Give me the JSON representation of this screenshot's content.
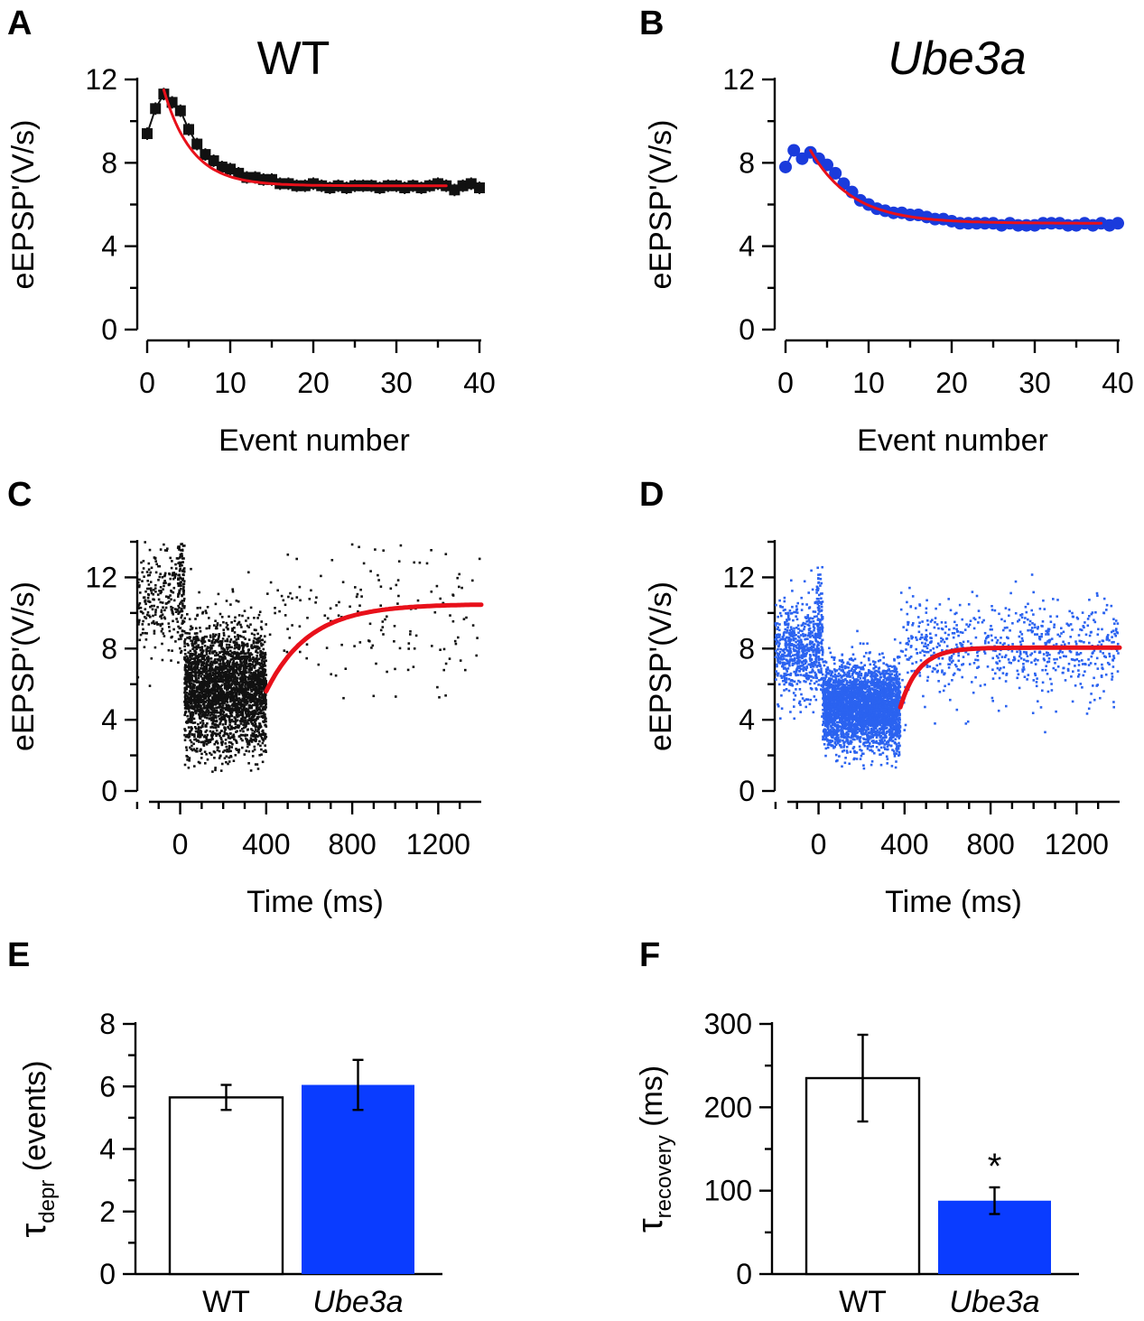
{
  "panels": {
    "A": {
      "letter": "A",
      "title": "WT"
    },
    "B": {
      "letter": "B",
      "title": "Ube3a"
    },
    "C": {
      "letter": "C"
    },
    "D": {
      "letter": "D"
    },
    "E": {
      "letter": "E"
    },
    "F": {
      "letter": "F"
    }
  },
  "colors": {
    "wt": "#111111",
    "ube3a": "#1a3bdc",
    "ube3a_scatter": "#2b63f0",
    "fit": "#e8101a",
    "bar_ube3a": "#0a3cff"
  },
  "chart_data": [
    {
      "id": "A",
      "type": "line",
      "title": "WT",
      "xlabel": "Event number",
      "ylabel": "eEPSP'(V/s)",
      "xlim": [
        -1,
        40
      ],
      "ylim": [
        0,
        12
      ],
      "xticks": [
        0,
        10,
        20,
        30,
        40
      ],
      "yticks": [
        0,
        4,
        8,
        12
      ],
      "series": [
        {
          "name": "WT",
          "x": [
            0,
            1,
            2,
            3,
            4,
            5,
            6,
            7,
            8,
            9,
            10,
            11,
            12,
            13,
            14,
            15,
            16,
            17,
            18,
            19,
            20,
            21,
            22,
            23,
            24,
            25,
            26,
            27,
            28,
            29,
            30,
            31,
            32,
            33,
            34,
            35,
            36,
            37,
            38,
            39,
            40
          ],
          "values": [
            9.4,
            10.6,
            11.3,
            10.9,
            10.5,
            9.6,
            8.9,
            8.4,
            8.1,
            7.8,
            7.7,
            7.5,
            7.3,
            7.3,
            7.2,
            7.2,
            7.0,
            7.0,
            6.9,
            6.9,
            7.0,
            6.9,
            6.8,
            6.9,
            6.8,
            6.9,
            6.9,
            6.9,
            6.8,
            6.9,
            6.9,
            6.8,
            6.9,
            6.8,
            6.9,
            7.0,
            6.9,
            6.7,
            6.9,
            7.0,
            6.8
          ],
          "errors": [
            0.3,
            0.3,
            0.3,
            0.3,
            0.3,
            0.3,
            0.3,
            0.3,
            0.3,
            0.3,
            0.3,
            0.3,
            0.3,
            0.3,
            0.3,
            0.3,
            0.3,
            0.3,
            0.3,
            0.3,
            0.3,
            0.3,
            0.3,
            0.3,
            0.3,
            0.3,
            0.3,
            0.3,
            0.3,
            0.3,
            0.3,
            0.3,
            0.3,
            0.3,
            0.3,
            0.3,
            0.3,
            0.3,
            0.3,
            0.3,
            0.3
          ]
        }
      ],
      "fit": {
        "x_start": 2,
        "x_end": 36,
        "y0": 11.5,
        "y_inf": 6.9,
        "tau": 3.4
      }
    },
    {
      "id": "B",
      "type": "line",
      "title": "Ube3a",
      "xlabel": "Event number",
      "ylabel": "eEPSP'(V/s)",
      "xlim": [
        -1,
        40
      ],
      "ylim": [
        0,
        12
      ],
      "xticks": [
        0,
        10,
        20,
        30,
        40
      ],
      "yticks": [
        0,
        4,
        8,
        12
      ],
      "series": [
        {
          "name": "Ube3a",
          "x": [
            0,
            1,
            2,
            3,
            4,
            5,
            6,
            7,
            8,
            9,
            10,
            11,
            12,
            13,
            14,
            15,
            16,
            17,
            18,
            19,
            20,
            21,
            22,
            23,
            24,
            25,
            26,
            27,
            28,
            29,
            30,
            31,
            32,
            33,
            34,
            35,
            36,
            37,
            38,
            39,
            40
          ],
          "values": [
            7.8,
            8.6,
            8.2,
            8.5,
            8.2,
            7.9,
            7.5,
            7.0,
            6.6,
            6.2,
            6.0,
            5.8,
            5.7,
            5.6,
            5.6,
            5.5,
            5.5,
            5.4,
            5.3,
            5.3,
            5.2,
            5.1,
            5.1,
            5.1,
            5.1,
            5.1,
            5.0,
            5.1,
            5.0,
            5.0,
            5.0,
            5.1,
            5.1,
            5.1,
            5.0,
            5.0,
            5.1,
            5.0,
            5.1,
            5.0,
            5.1
          ],
          "errors": [
            0.25,
            0.25,
            0.25,
            0.25,
            0.25,
            0.25,
            0.25,
            0.25,
            0.25,
            0.25,
            0.25,
            0.25,
            0.25,
            0.25,
            0.25,
            0.25,
            0.25,
            0.25,
            0.25,
            0.25,
            0.25,
            0.25,
            0.25,
            0.25,
            0.25,
            0.25,
            0.25,
            0.25,
            0.25,
            0.25,
            0.25,
            0.25,
            0.25,
            0.25,
            0.25,
            0.25,
            0.25,
            0.25,
            0.25,
            0.25,
            0.25
          ]
        }
      ],
      "fit": {
        "x_start": 3,
        "x_end": 38,
        "y0": 8.6,
        "y_inf": 5.1,
        "tau": 5.0
      }
    },
    {
      "id": "C",
      "type": "scatter",
      "xlabel": "Time (ms)",
      "ylabel": "eEPSP'(V/s)",
      "xlim": [
        -250,
        1400
      ],
      "ylim": [
        0,
        14
      ],
      "xticks": [
        0,
        400,
        800,
        1200
      ],
      "xminor": [
        -200,
        -100,
        100,
        200,
        300,
        500,
        600,
        700,
        900,
        1000,
        1100,
        1300
      ],
      "yticks": [
        0,
        4,
        8,
        12
      ],
      "yminor": [
        2,
        6,
        10,
        14
      ],
      "series": [
        {
          "name": "WT",
          "segments": [
            {
              "x": [
                -200,
                -10
              ],
              "mean": 10.8,
              "sd": 1.6,
              "n": 220
            },
            {
              "x": [
                -10,
                20
              ],
              "mean": 11.5,
              "sd": 1.8,
              "n": 120
            },
            {
              "x": [
                20,
                400
              ],
              "mean": 5.8,
              "sd": 1.7,
              "n": 3000
            },
            {
              "x": [
                400,
                1400
              ],
              "mean": 9.8,
              "sd": 2.2,
              "n": 150
            }
          ]
        }
      ],
      "fit": {
        "x_start": 400,
        "x_end": 1400,
        "y0": 5.6,
        "y_inf": 10.5,
        "tau": 200
      }
    },
    {
      "id": "D",
      "type": "scatter",
      "xlabel": "Time (ms)",
      "ylabel": "eEPSP'(V/s)",
      "xlim": [
        -250,
        1400
      ],
      "ylim": [
        0,
        14
      ],
      "xticks": [
        0,
        400,
        800,
        1200
      ],
      "xminor": [
        -200,
        -100,
        100,
        200,
        300,
        500,
        600,
        700,
        900,
        1000,
        1100,
        1300
      ],
      "yticks": [
        0,
        4,
        8,
        12
      ],
      "yminor": [
        2,
        6,
        10,
        14
      ],
      "series": [
        {
          "name": "Ube3a",
          "segments": [
            {
              "x": [
                -200,
                -10
              ],
              "mean": 7.8,
              "sd": 1.3,
              "n": 600
            },
            {
              "x": [
                -10,
                20
              ],
              "mean": 9.0,
              "sd": 1.6,
              "n": 150
            },
            {
              "x": [
                20,
                380
              ],
              "mean": 4.7,
              "sd": 1.1,
              "n": 3500
            },
            {
              "x": [
                380,
                1400
              ],
              "mean": 8.0,
              "sd": 1.4,
              "n": 700
            }
          ]
        }
      ],
      "fit": {
        "x_start": 380,
        "x_end": 1400,
        "y0": 4.7,
        "y_inf": 8.05,
        "tau": 85
      }
    },
    {
      "id": "E",
      "type": "bar",
      "ylabel_main": "τ",
      "ylabel_sub": "depr",
      "ylabel_rest": " (events)",
      "categories": [
        "WT",
        "Ube3a"
      ],
      "values": [
        5.65,
        6.05
      ],
      "errors": [
        0.4,
        0.8
      ],
      "ylim": [
        0,
        8
      ],
      "yticks": [
        0,
        2,
        4,
        6,
        8
      ],
      "yminor": [
        1,
        3,
        5,
        7
      ],
      "significance": [
        "",
        ""
      ]
    },
    {
      "id": "F",
      "type": "bar",
      "ylabel_main": "τ",
      "ylabel_sub": "recovery",
      "ylabel_rest": " (ms)",
      "categories": [
        "WT",
        "Ube3a"
      ],
      "values": [
        235,
        88
      ],
      "errors": [
        52,
        16
      ],
      "ylim": [
        0,
        300
      ],
      "yticks": [
        0,
        100,
        200,
        300
      ],
      "yminor": [
        50,
        150,
        250
      ],
      "significance": [
        "",
        "*"
      ]
    }
  ]
}
